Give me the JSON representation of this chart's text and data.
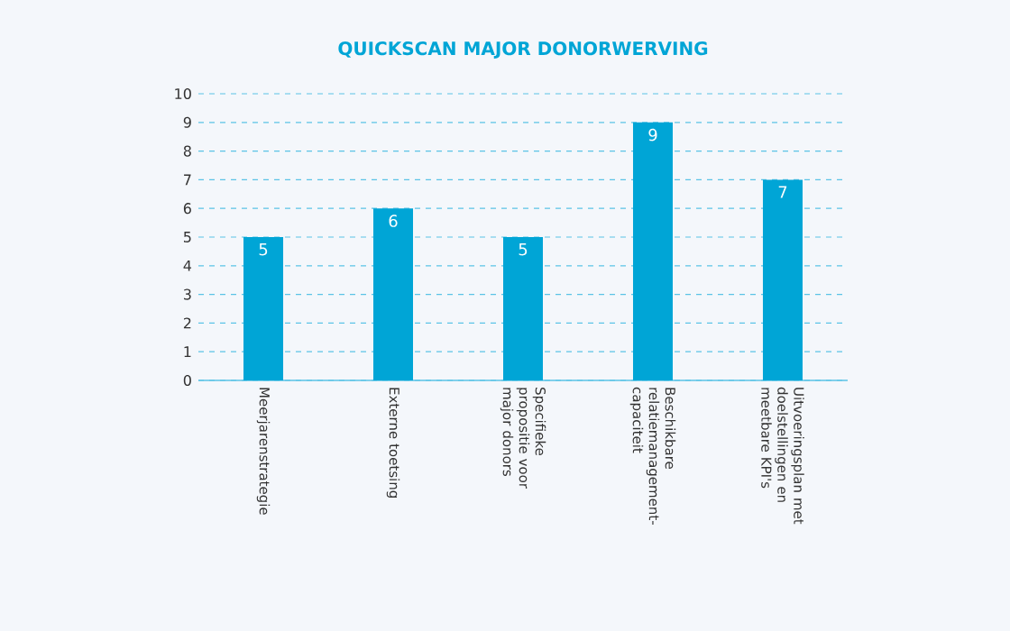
{
  "chart_data": {
    "type": "bar",
    "title": "QUICKSCAN MAJOR DONORWERVING",
    "categories": [
      "Meerjarenstrategie",
      "Externe toetsing",
      "Specifieke propositie voor major donors",
      "Beschikbare relatiemanagement-capaciteit",
      "Uitvoeringsplan met doelstellingen en meetbare KPI's"
    ],
    "values": [
      5,
      6,
      5,
      9,
      7
    ],
    "color": "#00a5d6",
    "ylim": [
      0,
      10
    ],
    "yticks": [
      0,
      1,
      2,
      3,
      4,
      5,
      6,
      7,
      8,
      9,
      10
    ],
    "grid": "y",
    "data_labels": true
  }
}
